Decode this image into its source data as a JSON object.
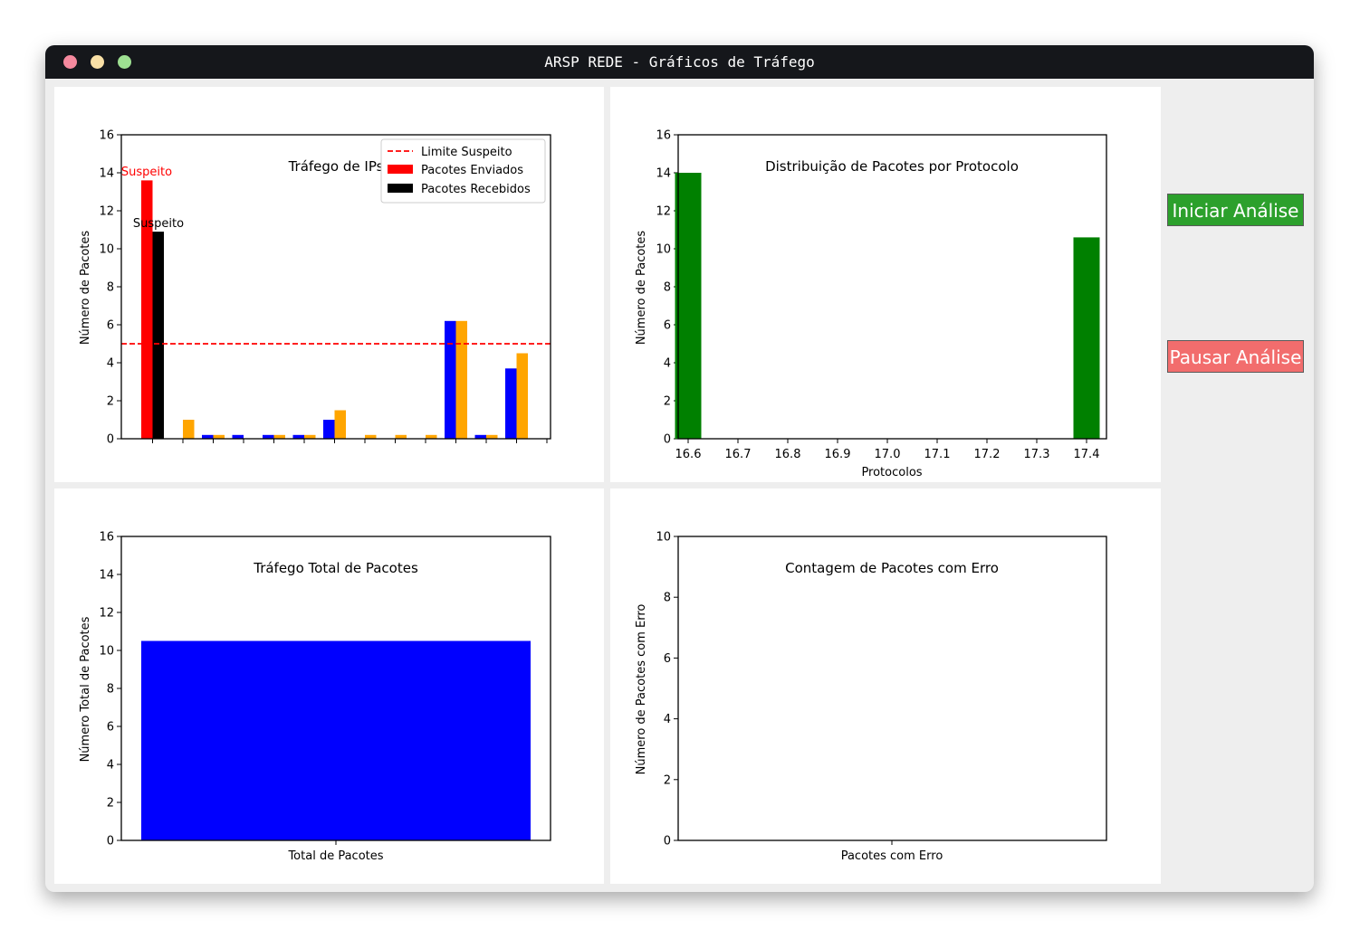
{
  "window": {
    "title": "ARSP REDE - Gráficos de Tráfego"
  },
  "controls": {
    "start_label": "Iniciar Análise",
    "pause_label": "Pausar Análise",
    "start_color": "#2ca02c",
    "pause_color": "#f26d6d"
  },
  "charts": {
    "ip": {
      "title": "Tráfego de IPs",
      "ylabel": "Número de Pacotes",
      "legend": {
        "line": "Limite Suspeito",
        "sent": "Pacotes Enviados",
        "received": "Pacotes Recebidos"
      },
      "annotations": [
        "Suspeito",
        "Suspeito"
      ]
    },
    "protocol": {
      "title": "Distribuição de Pacotes por Protocolo",
      "ylabel": "Número de Pacotes",
      "xlabel": "Protocolos"
    },
    "total": {
      "title": "Tráfego Total de Pacotes",
      "ylabel": "Número Total de Pacotes",
      "xtick": "Total de Pacotes"
    },
    "errors": {
      "title": "Contagem de Pacotes com Erro",
      "ylabel": "Número de Pacotes com Erro",
      "xtick": "Pacotes com Erro"
    }
  },
  "chart_data": [
    {
      "type": "bar",
      "title": "Tráfego de IPs",
      "ylabel": "Número de Pacotes",
      "ylim": [
        0,
        16
      ],
      "yticks": [
        0,
        2,
        4,
        6,
        8,
        10,
        12,
        14,
        16
      ],
      "threshold": {
        "name": "Limite Suspeito",
        "value": 5,
        "color": "#ff0000"
      },
      "series": [
        {
          "name": "Pacotes Enviados",
          "color": "#ff0000",
          "values": [
            13.6,
            0,
            0,
            0,
            0,
            0,
            0,
            0,
            0,
            0,
            0,
            0,
            0,
            0
          ]
        },
        {
          "name": "Pacotes Recebidos",
          "color": "#000000",
          "values": [
            10.9,
            0,
            0,
            0,
            0,
            0,
            0,
            0,
            0,
            0,
            0,
            0,
            0,
            0
          ]
        }
      ],
      "other_bars": {
        "blue": {
          "color": "#0000ff",
          "values": [
            0,
            0,
            0.2,
            0.2,
            0.2,
            0.2,
            1.0,
            0,
            0,
            0,
            6.2,
            0.2,
            3.7,
            0
          ]
        },
        "orange": {
          "color": "#ffa500",
          "values": [
            0,
            1.0,
            0.2,
            0,
            0.2,
            0.2,
            1.5,
            0.2,
            0.2,
            0.2,
            6.2,
            0.2,
            4.5,
            0
          ]
        }
      },
      "annotations": [
        {
          "text": "Suspeito",
          "bar": 0,
          "series": "Pacotes Enviados",
          "color": "#ff0000"
        },
        {
          "text": "Suspeito",
          "bar": 0,
          "series": "Pacotes Recebidos",
          "color": "#000000"
        }
      ],
      "legend_position": "upper right"
    },
    {
      "type": "bar",
      "title": "Distribuição de Pacotes por Protocolo",
      "xlabel": "Protocolos",
      "ylabel": "Número de Pacotes",
      "xlim": [
        16.58,
        17.44
      ],
      "xticks": [
        "16.6",
        "16.7",
        "16.8",
        "16.9",
        "17.0",
        "17.1",
        "17.2",
        "17.3",
        "17.4"
      ],
      "ylim": [
        0,
        16
      ],
      "yticks": [
        0,
        2,
        4,
        6,
        8,
        10,
        12,
        14,
        16
      ],
      "color": "#008000",
      "bars": [
        {
          "x": 16.6,
          "value": 14
        },
        {
          "x": 17.4,
          "value": 10.6
        }
      ]
    },
    {
      "type": "bar",
      "title": "Tráfego Total de Pacotes",
      "ylabel": "Número Total de Pacotes",
      "categories": [
        "Total de Pacotes"
      ],
      "ylim": [
        0,
        16
      ],
      "yticks": [
        0,
        2,
        4,
        6,
        8,
        10,
        12,
        14,
        16
      ],
      "color": "#0000ff",
      "values": [
        10.5
      ]
    },
    {
      "type": "bar",
      "title": "Contagem de Pacotes com Erro",
      "ylabel": "Número de Pacotes com Erro",
      "categories": [
        "Pacotes com Erro"
      ],
      "ylim": [
        0,
        10
      ],
      "yticks": [
        0,
        2,
        4,
        6,
        8,
        10
      ],
      "values": [
        0
      ]
    }
  ]
}
